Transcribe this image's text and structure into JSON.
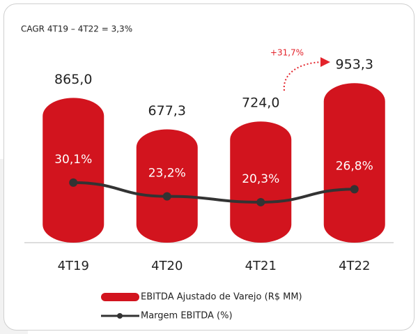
{
  "chart_data": {
    "type": "bar_line",
    "annotations": [
      "CAGR 4T19 – 4T22 = 3,3%",
      "+31,7%"
    ],
    "categories": [
      "4T19",
      "4T20",
      "4T21",
      "4T22"
    ],
    "series": [
      {
        "name": "EBITDA Ajustado de Varejo (R$ MM)",
        "type": "bar",
        "color": "#d2141e",
        "values": [
          865.0,
          677.3,
          724.0,
          953.3
        ],
        "value_labels": [
          "865,0",
          "677,3",
          "724,0",
          "953,3"
        ]
      },
      {
        "name": "Margem EBITDA (%)",
        "type": "line",
        "axis": "y2",
        "color": "#333333",
        "values": [
          30.1,
          23.2,
          20.3,
          26.8
        ],
        "value_labels": [
          "30,1%",
          "23,2%",
          "20,3%",
          "26,8%"
        ]
      }
    ]
  }
}
